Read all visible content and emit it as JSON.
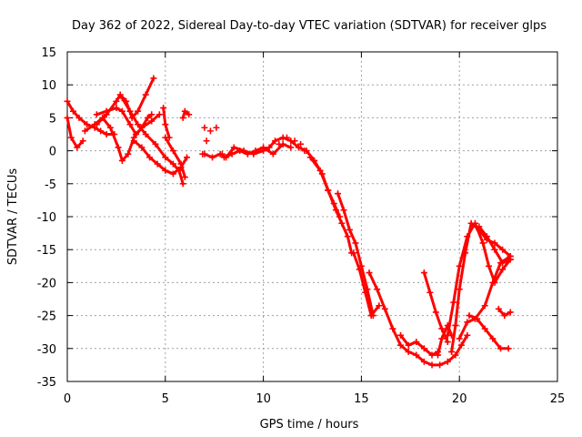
{
  "chart_data": {
    "type": "scatter",
    "title": "Day 362 of 2022, Sidereal Day-to-day VTEC variation (SDTVAR) for receiver glps",
    "xlabel": "GPS time / hours",
    "ylabel": "SDTVAR / TECUs",
    "xlim": [
      0,
      25
    ],
    "ylim": [
      -35,
      15
    ],
    "xticks": [
      "0",
      "5",
      "10",
      "15",
      "20",
      "25"
    ],
    "yticks": [
      "15",
      "10",
      "5",
      "0",
      "-5",
      "-10",
      "-15",
      "-20",
      "-25",
      "-30",
      "-35"
    ],
    "grid": true,
    "marker": "plus",
    "color": "#ff0000",
    "series": [
      {
        "name": "s1",
        "x": [
          0.0,
          0.3,
          0.6,
          1.0,
          1.4,
          1.7,
          2.0,
          2.4
        ],
        "y": [
          7.5,
          6.0,
          5.0,
          4.0,
          3.5,
          3.0,
          2.5,
          2.5
        ]
      },
      {
        "name": "s2",
        "x": [
          0.0,
          0.2,
          0.5,
          0.8
        ],
        "y": [
          5.0,
          2.0,
          0.5,
          1.5
        ]
      },
      {
        "name": "s3",
        "x": [
          1.5,
          2.0,
          2.5,
          2.8,
          3.2,
          3.5,
          3.8,
          4.1,
          4.3
        ],
        "y": [
          5.5,
          6.0,
          6.5,
          6.0,
          4.0,
          2.5,
          3.5,
          5.0,
          5.5
        ]
      },
      {
        "name": "s4",
        "x": [
          1.5,
          2.0,
          2.5,
          2.7,
          3.0,
          3.3,
          3.6,
          4.0,
          4.4
        ],
        "y": [
          4.0,
          5.5,
          7.5,
          8.5,
          7.5,
          5.0,
          6.0,
          8.5,
          11.0
        ]
      },
      {
        "name": "s5",
        "x": [
          0.9,
          1.4,
          1.8,
          2.2,
          2.6,
          2.8,
          3.1,
          3.4,
          3.8,
          4.3,
          4.7
        ],
        "y": [
          3.0,
          4.0,
          5.0,
          3.5,
          0.5,
          -1.5,
          -0.5,
          2.0,
          3.5,
          4.5,
          5.5
        ]
      },
      {
        "name": "s6",
        "x": [
          2.8,
          3.2,
          3.6,
          4.0,
          4.5,
          5.0,
          5.4,
          5.7,
          5.9
        ],
        "y": [
          8.0,
          6.0,
          4.0,
          2.5,
          1.0,
          -1.0,
          -2.0,
          -3.0,
          -5.0
        ]
      },
      {
        "name": "s7",
        "x": [
          3.4,
          3.8,
          4.2,
          4.6,
          5.0,
          5.4,
          5.8,
          6.1
        ],
        "y": [
          1.5,
          0.5,
          -1.0,
          -2.0,
          -3.0,
          -3.5,
          -2.5,
          -1.0
        ]
      },
      {
        "name": "s8",
        "x": [
          5.0,
          5.4,
          5.8,
          6.0
        ],
        "y": [
          2.0,
          0.0,
          -2.0,
          -4.0
        ]
      },
      {
        "name": "s9",
        "x": [
          4.9,
          5.0,
          5.2
        ],
        "y": [
          6.5,
          4.0,
          2.0
        ]
      },
      {
        "name": "s10",
        "x": [
          5.9,
          6.0,
          6.2
        ],
        "y": [
          5.0,
          6.0,
          5.5
        ]
      },
      {
        "name": "s11",
        "x": [
          7.0,
          7.4,
          7.8,
          8.1,
          8.5,
          9.0,
          9.5,
          10.0,
          10.3,
          10.6,
          11.0,
          11.4,
          11.8,
          12.2,
          12.6,
          13.0,
          13.3,
          13.6,
          13.9
        ],
        "y": [
          -0.5,
          -1.0,
          -0.5,
          -1.0,
          0.5,
          0.0,
          -0.5,
          0.0,
          0.5,
          1.5,
          2.0,
          1.5,
          0.5,
          0.0,
          -1.5,
          -3.5,
          -6.0,
          -8.0,
          -10.0
        ]
      },
      {
        "name": "s12",
        "x": [
          8.0,
          8.4,
          8.8,
          9.2,
          9.6,
          10.0,
          10.5,
          11.0,
          11.4
        ],
        "y": [
          -1.0,
          -0.5,
          0.0,
          -0.5,
          0.0,
          0.5,
          -0.5,
          1.0,
          0.5
        ]
      },
      {
        "name": "s13",
        "x": [
          12.4,
          12.9,
          13.3,
          13.7,
          14.0,
          14.3,
          14.5
        ],
        "y": [
          -1.0,
          -3.0,
          -6.0,
          -9.0,
          -11.0,
          -13.0,
          -15.5
        ]
      },
      {
        "name": "s14",
        "x": [
          13.8,
          14.1,
          14.4,
          14.7,
          15.0,
          15.3,
          15.6
        ],
        "y": [
          -6.5,
          -9.0,
          -12.0,
          -14.0,
          -17.5,
          -21.0,
          -25.0
        ]
      },
      {
        "name": "s15",
        "x": [
          14.6,
          14.9,
          15.2,
          15.5,
          15.9
        ],
        "y": [
          -15.5,
          -18.0,
          -21.5,
          -25.0,
          -23.5
        ]
      },
      {
        "name": "s16",
        "x": [
          15.4,
          15.8,
          16.2,
          16.6,
          17.0,
          17.4,
          17.8,
          18.2,
          18.6,
          19.0,
          19.4,
          19.8,
          20.1,
          20.4
        ],
        "y": [
          -18.5,
          -21.0,
          -24.0,
          -27.0,
          -29.5,
          -30.5,
          -31.0,
          -32.0,
          -32.5,
          -32.5,
          -32.0,
          -31.0,
          -29.5,
          -28.0
        ]
      },
      {
        "name": "s17",
        "x": [
          17.0,
          17.4,
          17.8,
          18.2,
          18.6,
          18.9
        ],
        "y": [
          -28.0,
          -29.5,
          -29.0,
          -30.0,
          -31.0,
          -30.5
        ]
      },
      {
        "name": "s18",
        "x": [
          18.2,
          18.5,
          18.8,
          19.1,
          19.4
        ],
        "y": [
          -18.5,
          -21.5,
          -24.5,
          -27.0,
          -29.0
        ]
      },
      {
        "name": "s19",
        "x": [
          18.9,
          19.1,
          19.4,
          19.6
        ],
        "y": [
          -31.0,
          -28.5,
          -26.5,
          -28.0
        ]
      },
      {
        "name": "s20",
        "x": [
          19.6,
          19.8,
          20.0,
          20.3,
          20.6,
          21.0,
          21.4,
          21.8,
          22.2,
          22.6
        ],
        "y": [
          -30.5,
          -26.5,
          -21.0,
          -15.5,
          -11.0,
          -12.0,
          -13.5,
          -14.0,
          -15.0,
          -16.0
        ]
      },
      {
        "name": "s21",
        "x": [
          19.4,
          19.7,
          20.0,
          20.4,
          20.8,
          21.2,
          21.5,
          21.8,
          22.2,
          22.6
        ],
        "y": [
          -28.0,
          -23.0,
          -17.5,
          -13.0,
          -11.0,
          -14.0,
          -17.5,
          -20.0,
          -18.0,
          -16.5
        ]
      },
      {
        "name": "s22",
        "x": [
          20.0,
          20.4,
          20.8,
          21.3,
          21.7,
          22.1,
          22.6
        ],
        "y": [
          -28.5,
          -26.0,
          -25.5,
          -23.5,
          -20.0,
          -17.0,
          -16.0
        ]
      },
      {
        "name": "s23",
        "x": [
          20.5,
          20.9,
          21.3,
          21.7,
          22.1,
          22.5
        ],
        "y": [
          -25.0,
          -25.5,
          -27.0,
          -28.5,
          -30.0,
          -30.0
        ]
      },
      {
        "name": "s24",
        "x": [
          21.0,
          21.4,
          21.8,
          22.2,
          22.6
        ],
        "y": [
          -11.5,
          -13.0,
          -15.0,
          -17.0,
          -16.5
        ]
      },
      {
        "name": "s25",
        "x": [
          22.0,
          22.3,
          22.6
        ],
        "y": [
          -24.0,
          -25.0,
          -24.5
        ]
      }
    ],
    "scatter_points": {
      "x": [
        7.0,
        7.3,
        7.6,
        7.1,
        7.9,
        6.9,
        10.8,
        11.2,
        11.6,
        11.9,
        12.1
      ],
      "y": [
        3.5,
        3.0,
        3.5,
        1.5,
        -0.5,
        -0.5,
        1.0,
        2.0,
        1.5,
        1.0,
        0.0
      ]
    }
  }
}
